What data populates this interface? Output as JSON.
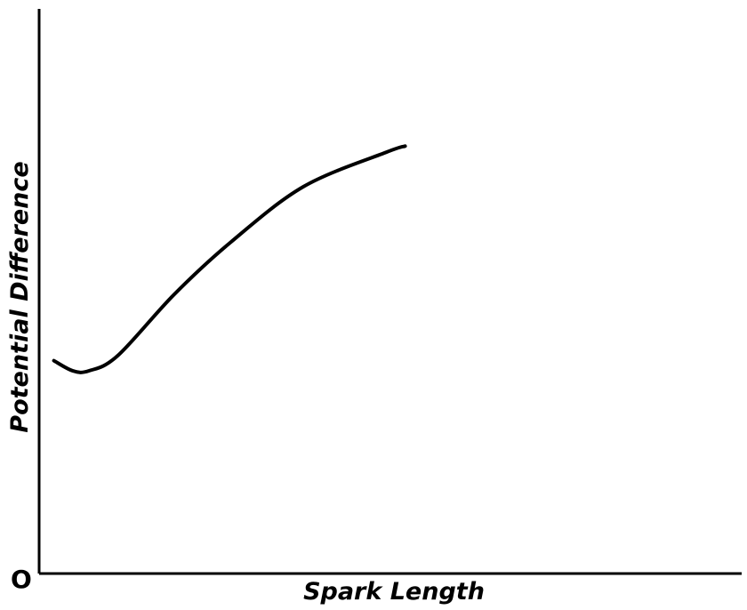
{
  "chart_data": {
    "type": "line",
    "title": "",
    "xlabel": "Spark Length",
    "ylabel": "Potential Difference",
    "origin_label": "O",
    "xlim": [
      0,
      100
    ],
    "ylim": [
      0,
      100
    ],
    "grid": false,
    "legend": "none",
    "series": [
      {
        "x": [
          2.1,
          4.8,
          7.1,
          11.2,
          19.2,
          27.2,
          37.6,
          49.4,
          52.1
        ],
        "y": [
          37.7,
          35.9,
          35.9,
          38.6,
          49.4,
          58.6,
          68.5,
          74.6,
          75.7
        ]
      }
    ]
  }
}
